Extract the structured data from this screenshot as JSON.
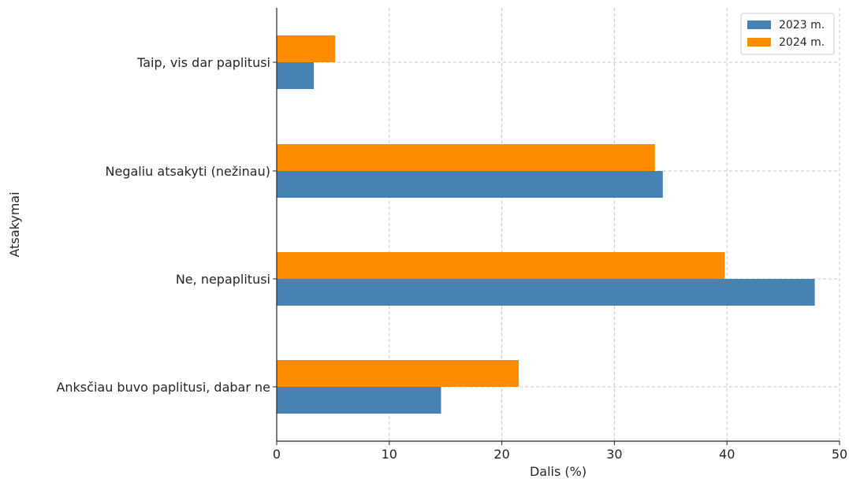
{
  "chart_data": {
    "type": "bar",
    "orientation": "horizontal",
    "categories": [
      "Taip, vis dar paplitusi",
      "Negaliu atsakyti (nežinau)",
      "Ne, nepaplitusi",
      "Anksčiau buvo paplitusi, dabar ne"
    ],
    "series": [
      {
        "name": "2023 m.",
        "color": "#4682b4",
        "values": [
          3.3,
          34.3,
          47.8,
          14.6
        ]
      },
      {
        "name": "2024 m.",
        "color": "#ff8c00",
        "values": [
          5.2,
          33.6,
          39.8,
          21.5
        ]
      }
    ],
    "xlabel": "Dalis (%)",
    "ylabel": "Atsakymai",
    "xlim": [
      0,
      50
    ],
    "xticks": [
      0,
      10,
      20,
      30,
      40,
      50
    ],
    "grid": true,
    "legend": "top-right"
  }
}
